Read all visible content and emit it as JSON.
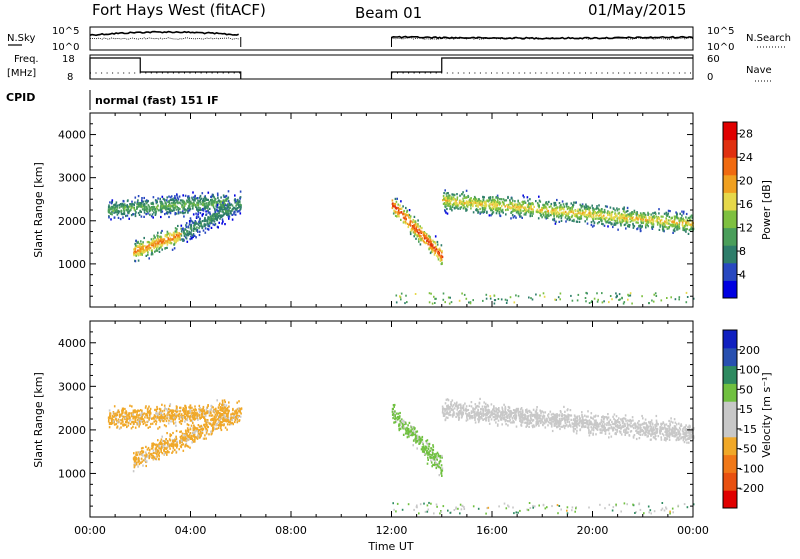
{
  "header": {
    "station": "Fort Hays West (fitACF)",
    "beam": "Beam 01",
    "date": "01/May/2015"
  },
  "panels": {
    "nsky": {
      "label": "N.Sky",
      "right_label": "N.Search",
      "left_ticks": [
        "10^5",
        "10^0"
      ],
      "right_ticks": [
        "10^5",
        "10^0"
      ]
    },
    "freq": {
      "label_top": "Freq.",
      "label_bottom": "[MHz]",
      "right_label": "Nave",
      "left_ticks": [
        "18",
        "8"
      ],
      "right_ticks": [
        "60",
        "0"
      ]
    },
    "cpid": {
      "label": "CPID",
      "value": "normal (fast) 151 IF"
    }
  },
  "colors": {
    "power_scale": [
      "#0000e0",
      "#2848c0",
      "#2e7d6a",
      "#4a9e5a",
      "#7ec040",
      "#e6d84a",
      "#f0a020",
      "#f06a10",
      "#e03010",
      "#e00000"
    ],
    "velocity_scale": [
      "#e00000",
      "#e85010",
      "#f07818",
      "#f0a828",
      "#c8c8c8",
      "#c8c8c8",
      "#70c040",
      "#2e8a60",
      "#2850b0",
      "#1020c0"
    ]
  },
  "chart_data": [
    {
      "type": "heatmap",
      "name": "power",
      "ylabel": "Slant Range [km]",
      "ylim": [
        0,
        4500
      ],
      "yticks": [
        1000,
        2000,
        3000,
        4000
      ],
      "xlim_hours": [
        0,
        24
      ],
      "colorbar": {
        "label": "Power [dB]",
        "ticks": [
          "4",
          "8",
          "12",
          "16",
          "20",
          "24",
          "28"
        ],
        "range": [
          0,
          30
        ]
      },
      "echo_bands": [
        {
          "t_start": 0.7,
          "t_end": 5.5,
          "r_start": 2280,
          "r_end": 2450,
          "peak_db": 12
        },
        {
          "t_start": 1.7,
          "t_end": 3.6,
          "r_start": 1300,
          "r_end": 1700,
          "peak_db": 22
        },
        {
          "t_start": 3.6,
          "t_end": 6.0,
          "r_start": 1700,
          "r_end": 2450,
          "peak_db": 10
        },
        {
          "t_start": 12.0,
          "t_end": 14.0,
          "r_start": 2400,
          "r_end": 1200,
          "peak_db": 26
        },
        {
          "t_start": 14.0,
          "t_end": 24.0,
          "r_start": 2500,
          "r_end": 1950,
          "peak_db": 18
        }
      ]
    },
    {
      "type": "heatmap",
      "name": "velocity",
      "ylabel": "Slant Range [km]",
      "ylim": [
        0,
        4500
      ],
      "yticks": [
        1000,
        2000,
        3000,
        4000
      ],
      "xlabel": "Time UT",
      "xticks": [
        "00:00",
        "04:00",
        "08:00",
        "12:00",
        "16:00",
        "20:00",
        "00:00"
      ],
      "xlim_hours": [
        0,
        24
      ],
      "colorbar": {
        "label": "Velocity [m s⁻¹]",
        "ticks": [
          "200",
          "100",
          "50",
          "15",
          "-15",
          "-50",
          "-100",
          "-200"
        ],
        "range": [
          -250,
          250
        ]
      },
      "echo_bands": [
        {
          "t_start": 0.7,
          "t_end": 5.5,
          "r_start": 2280,
          "r_end": 2450,
          "velocity": -60
        },
        {
          "t_start": 1.7,
          "t_end": 6.0,
          "r_start": 1300,
          "r_end": 2450,
          "velocity": -60
        },
        {
          "t_start": 12.0,
          "t_end": 14.0,
          "r_start": 2400,
          "r_end": 1200,
          "velocity": 60
        },
        {
          "t_start": 14.0,
          "t_end": 24.0,
          "r_start": 2500,
          "r_end": 1950,
          "velocity": 0
        }
      ]
    }
  ]
}
